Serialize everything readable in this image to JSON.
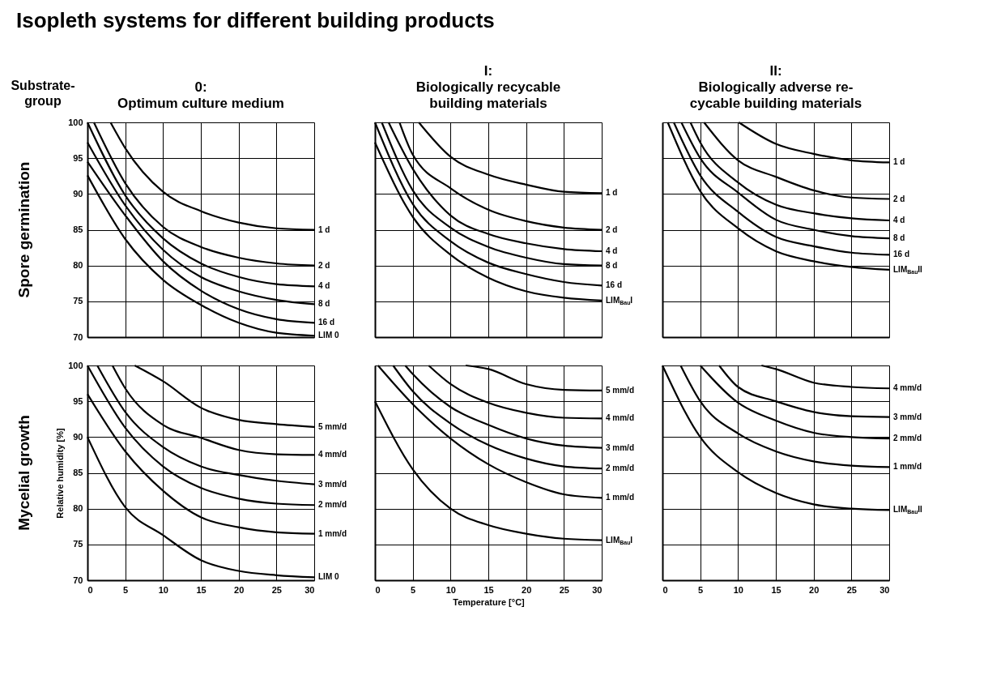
{
  "chart_data": [
    {
      "type": "line",
      "title": "0:\nOptimum culture medium",
      "subtitle": "Spore germination",
      "annotations": [
        "Isopleth systems for different building products",
        "Substrate-\ngroup"
      ],
      "xlim": [
        0,
        30
      ],
      "xticks": [
        0,
        5,
        10,
        15,
        20,
        25,
        30
      ],
      "ylim": [
        70,
        100
      ],
      "yticks": [
        70,
        75,
        80,
        85,
        90,
        95,
        100
      ],
      "grid": true,
      "tick_labels": "y",
      "series": [
        {
          "name": "1 d",
          "color": "#000000",
          "x": [
            3.05,
            5,
            10,
            15,
            20,
            25,
            30
          ],
          "values": [
            100,
            96.4,
            90.3,
            87.6,
            86.0,
            85.2,
            85.0
          ]
        },
        {
          "name": "2 d",
          "color": "#000000",
          "x": [
            0.85,
            5,
            10,
            15,
            20,
            25,
            30
          ],
          "values": [
            100,
            91.5,
            85.4,
            82.6,
            81.1,
            80.3,
            80.0
          ]
        },
        {
          "name": "4 d",
          "color": "#000000",
          "x": [
            0,
            5,
            10,
            15,
            20,
            25,
            30
          ],
          "values": [
            100,
            89.8,
            83.8,
            80.3,
            78.4,
            77.4,
            77.1
          ]
        },
        {
          "name": "8 d",
          "color": "#000000",
          "x": [
            0,
            5,
            10,
            15,
            20,
            25,
            30
          ],
          "values": [
            97.2,
            88.4,
            82.2,
            78.4,
            76.4,
            75.2,
            74.6
          ]
        },
        {
          "name": "16 d",
          "color": "#000000",
          "x": [
            0,
            5,
            10,
            15,
            20,
            25,
            30
          ],
          "values": [
            94.5,
            87.0,
            80.6,
            76.5,
            73.9,
            72.5,
            72.0
          ]
        },
        {
          "name": "LIM 0",
          "color": "#000000",
          "x": [
            0,
            5,
            10,
            15,
            20,
            25,
            30
          ],
          "values": [
            92.6,
            83.7,
            78.0,
            74.5,
            72.0,
            70.6,
            70.2
          ]
        }
      ]
    },
    {
      "type": "line",
      "title": "I:\nBiologically recycable\nbuilding materials",
      "xlim": [
        0,
        30
      ],
      "xticks": [
        0,
        5,
        10,
        15,
        20,
        25,
        30
      ],
      "ylim": [
        70,
        100
      ],
      "yticks": [
        70,
        75,
        80,
        85,
        90,
        95,
        100
      ],
      "grid": true,
      "tick_labels": false,
      "series": [
        {
          "name": "1 d",
          "color": "#000000",
          "x": [
            5.8,
            10,
            15,
            20,
            25,
            30
          ],
          "values": [
            100,
            95.2,
            92.7,
            91.3,
            90.3,
            90.1
          ]
        },
        {
          "name": "2 d",
          "color": "#000000",
          "x": [
            3.25,
            5,
            10,
            15,
            20,
            25,
            30
          ],
          "values": [
            100,
            95.5,
            90.8,
            87.8,
            86.2,
            85.3,
            85.0
          ]
        },
        {
          "name": "4 d",
          "color": "#000000",
          "x": [
            1.8,
            5,
            10,
            15,
            20,
            25,
            30
          ],
          "values": [
            100,
            93.5,
            87.0,
            84.4,
            83.1,
            82.3,
            82.0
          ]
        },
        {
          "name": "8 d",
          "color": "#000000",
          "x": [
            0.9,
            5,
            10,
            15,
            20,
            25,
            30
          ],
          "values": [
            100,
            90.5,
            85.3,
            82.6,
            81.1,
            80.2,
            80.0
          ]
        },
        {
          "name": "16 d",
          "color": "#000000",
          "x": [
            0,
            5,
            10,
            15,
            20,
            25,
            30
          ],
          "values": [
            100,
            88.6,
            83.4,
            80.4,
            78.8,
            77.7,
            77.2
          ]
        },
        {
          "name": "LIM$_{Bau}$I",
          "color": "#000000",
          "x": [
            0,
            5,
            10,
            15,
            20,
            25,
            30
          ],
          "values": [
            97.2,
            86.8,
            81.5,
            78.3,
            76.4,
            75.5,
            75.1
          ]
        }
      ]
    },
    {
      "type": "line",
      "title": "II:\nBiologically adverse re-\ncycable building materials",
      "xlim": [
        0,
        30
      ],
      "xticks": [
        0,
        5,
        10,
        15,
        20,
        25,
        30
      ],
      "ylim": [
        70,
        100
      ],
      "yticks": [
        70,
        75,
        80,
        85,
        90,
        95,
        100
      ],
      "grid": true,
      "tick_labels": false,
      "series": [
        {
          "name": "1 d",
          "color": "#000000",
          "x": [
            10.1,
            15,
            20,
            25,
            30
          ],
          "values": [
            100,
            97.0,
            95.6,
            94.7,
            94.4
          ]
        },
        {
          "name": "2 d",
          "color": "#000000",
          "x": [
            5.5,
            10,
            15,
            20,
            25,
            30
          ],
          "values": [
            100,
            94.7,
            92.4,
            90.5,
            89.5,
            89.3
          ]
        },
        {
          "name": "4 d",
          "color": "#000000",
          "x": [
            3.7,
            5,
            10,
            15,
            20,
            25,
            30
          ],
          "values": [
            100,
            97.2,
            91.6,
            88.5,
            87.3,
            86.6,
            86.3
          ]
        },
        {
          "name": "8 d",
          "color": "#000000",
          "x": [
            2.5,
            5,
            10,
            15,
            20,
            25,
            30
          ],
          "values": [
            100,
            95,
            90.2,
            86.4,
            85.0,
            84.1,
            83.8
          ]
        },
        {
          "name": "16 d",
          "color": "#000000",
          "x": [
            1.5,
            5,
            10,
            15,
            20,
            25,
            30
          ],
          "values": [
            100,
            92.6,
            87.5,
            84.0,
            82.7,
            81.8,
            81.5
          ]
        },
        {
          "name": "LIM$_{Bau}$II",
          "color": "#000000",
          "x": [
            0.7,
            5,
            10,
            15,
            20,
            25,
            30
          ],
          "values": [
            100,
            90.4,
            85.2,
            82.0,
            80.6,
            79.8,
            79.4
          ]
        }
      ]
    },
    {
      "type": "line",
      "subtitle": "Mycelial growth",
      "ylabel": "Relative humidity [%]",
      "xlim": [
        0,
        30
      ],
      "xticks": [
        0,
        5,
        10,
        15,
        20,
        25,
        30
      ],
      "ylim": [
        70,
        100
      ],
      "yticks": [
        70,
        75,
        80,
        85,
        90,
        95,
        100
      ],
      "grid": true,
      "series": [
        {
          "name": "5 mm/d",
          "color": "#000000",
          "x": [
            6.25,
            10,
            15,
            20,
            25,
            30
          ],
          "values": [
            100,
            97.8,
            94.1,
            92.4,
            91.8,
            91.4
          ]
        },
        {
          "name": "4 mm/d",
          "color": "#000000",
          "x": [
            3.3,
            5,
            10,
            15,
            20,
            25,
            30
          ],
          "values": [
            100,
            96.8,
            91.7,
            89.9,
            88.2,
            87.6,
            87.5
          ]
        },
        {
          "name": "3 mm/d",
          "color": "#000000",
          "x": [
            1.3,
            5,
            10,
            15,
            20,
            25,
            30
          ],
          "values": [
            100,
            93.5,
            88.6,
            85.9,
            84.7,
            83.9,
            83.4
          ]
        },
        {
          "name": "2 mm/d",
          "color": "#000000",
          "x": [
            0,
            5,
            10,
            15,
            20,
            25,
            30
          ],
          "values": [
            100,
            91.3,
            85.9,
            82.9,
            81.4,
            80.7,
            80.5
          ]
        },
        {
          "name": "1 mm/d",
          "color": "#000000",
          "x": [
            0,
            5,
            10,
            15,
            20,
            25,
            30
          ],
          "values": [
            96.0,
            88.0,
            82.5,
            78.8,
            77.4,
            76.7,
            76.5
          ]
        },
        {
          "name": "LIM 0",
          "color": "#000000",
          "x": [
            0,
            5,
            10,
            15,
            20,
            25,
            30
          ],
          "values": [
            90.0,
            80.2,
            76.3,
            72.8,
            71.3,
            70.7,
            70.4
          ]
        }
      ]
    },
    {
      "type": "line",
      "xlabel": "Temperature [°C]",
      "xlim": [
        0,
        30
      ],
      "xticks": [
        0,
        5,
        10,
        15,
        20,
        25,
        30
      ],
      "ylim": [
        70,
        100
      ],
      "yticks": [
        70,
        75,
        80,
        85,
        90,
        95,
        100
      ],
      "grid": true,
      "tick_labels": "x",
      "series": [
        {
          "name": "5 mm/d",
          "color": "#000000",
          "x": [
            12,
            15,
            20,
            25,
            30
          ],
          "values": [
            100,
            99.5,
            97.4,
            96.6,
            96.5
          ]
        },
        {
          "name": "4 mm/d",
          "color": "#000000",
          "x": [
            7.1,
            10,
            15,
            20,
            25,
            30
          ],
          "values": [
            100,
            97.4,
            94.8,
            93.4,
            92.7,
            92.6
          ]
        },
        {
          "name": "3 mm/d",
          "color": "#000000",
          "x": [
            4.0,
            5,
            10,
            15,
            20,
            25,
            30
          ],
          "values": [
            100,
            98.8,
            94.2,
            91.7,
            89.8,
            88.8,
            88.5
          ]
        },
        {
          "name": "2 mm/d",
          "color": "#000000",
          "x": [
            2.4,
            5,
            10,
            15,
            20,
            25,
            30
          ],
          "values": [
            100,
            96.4,
            91.9,
            88.9,
            87.0,
            85.9,
            85.6
          ]
        },
        {
          "name": "1 mm/d",
          "color": "#000000",
          "x": [
            0.4,
            5,
            10,
            15,
            20,
            25,
            30
          ],
          "values": [
            100,
            94.6,
            89.8,
            86.2,
            83.7,
            82.0,
            81.5
          ]
        },
        {
          "name": "LIM$_{Bau}$I",
          "color": "#000000",
          "x": [
            0,
            5,
            10,
            15,
            20,
            25,
            30
          ],
          "values": [
            95.0,
            85.5,
            80.0,
            77.7,
            76.5,
            75.8,
            75.6
          ]
        }
      ]
    },
    {
      "type": "line",
      "xlim": [
        0,
        30
      ],
      "xticks": [
        0,
        5,
        10,
        15,
        20,
        25,
        30
      ],
      "ylim": [
        70,
        100
      ],
      "yticks": [
        70,
        75,
        80,
        85,
        90,
        95,
        100
      ],
      "grid": true,
      "tick_labels": "x",
      "series": [
        {
          "name": "4 mm/d",
          "color": "#000000",
          "x": [
            13.1,
            15,
            20,
            25,
            30
          ],
          "values": [
            100,
            99.5,
            97.6,
            97.0,
            96.8
          ]
        },
        {
          "name": "3 mm/d",
          "color": "#000000",
          "x": [
            7.5,
            10,
            15,
            20,
            25,
            30
          ],
          "values": [
            100,
            97.0,
            95.0,
            93.5,
            92.9,
            92.8
          ]
        },
        {
          "name": "2 mm/d",
          "color": "#000000",
          "x": [
            5.0,
            10,
            15,
            20,
            25,
            30
          ],
          "values": [
            100,
            94.8,
            92.3,
            90.6,
            90.0,
            89.8
          ]
        },
        {
          "name": "1 mm/d",
          "color": "#000000",
          "x": [
            2.4,
            5,
            10,
            15,
            20,
            25,
            30
          ],
          "values": [
            100,
            95.0,
            90.5,
            88.0,
            86.6,
            86.0,
            85.8
          ]
        },
        {
          "name": "LIM$_{Bau}$II",
          "color": "#000000",
          "x": [
            0,
            5,
            10,
            15,
            20,
            25,
            30
          ],
          "values": [
            100,
            90.0,
            85.1,
            82.2,
            80.6,
            80.0,
            79.8
          ]
        }
      ]
    }
  ]
}
